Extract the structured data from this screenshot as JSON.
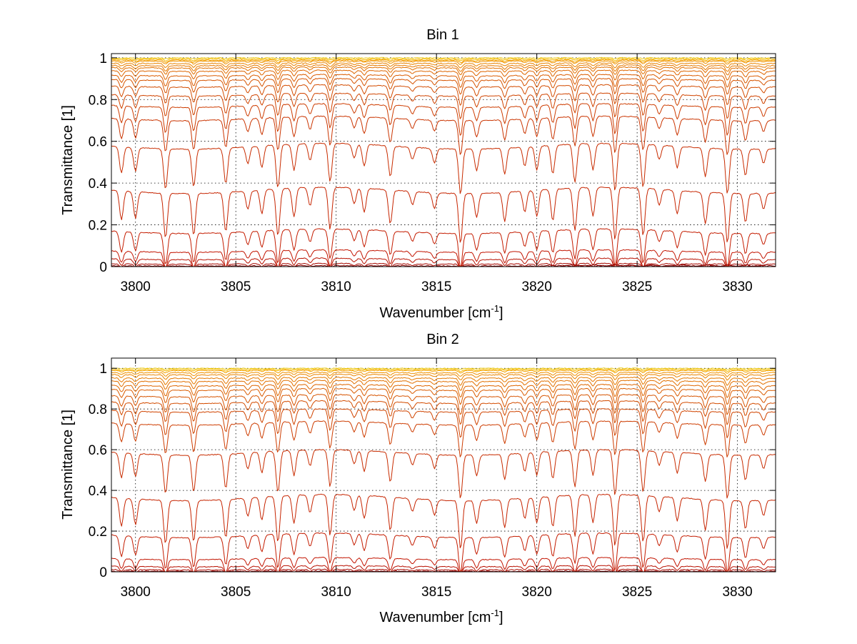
{
  "chart_data": [
    {
      "type": "line",
      "title": "Bin 1",
      "xlabel": "Wavenumber [cm",
      "xlabel_sup": "-1",
      "xlabel_end": "]",
      "ylabel": "Transmittance [1]",
      "xlim": [
        3798.8,
        3831.9
      ],
      "ylim": [
        0,
        1.02
      ],
      "xticks": [
        3800,
        3805,
        3810,
        3815,
        3820,
        3825,
        3830
      ],
      "yticks": [
        0,
        0.2,
        0.4,
        0.6,
        0.8,
        1
      ],
      "ytick_labels": [
        "0",
        "0.2",
        "0.4",
        "0.6",
        "0.8",
        "1"
      ],
      "grid": true,
      "lines": [
        {
          "x": [
            3820.6,
            3821.1,
            3821.8,
            3822.4,
            3822.9,
            3823.3,
            3823.9,
            3824.4,
            3824.6,
            3825.2,
            3825.7,
            3826.2,
            3827.3,
            3827.8,
            3828.5,
            3829.2,
            3829.5,
            3829.9,
            3830.5,
            3830.7,
            3831.5
          ],
          "y": [
            0.01,
            0.0,
            0.01,
            0.0,
            0.01,
            0.0,
            0.01,
            0.0,
            0.01,
            0.0,
            0.01,
            0.0,
            0.01,
            0.0,
            0.01,
            0.0,
            0.01,
            0.0,
            0.01,
            0.0,
            0.01
          ]
        }
      ],
      "series": [
        {
          "level": 1.0,
          "color": "#f0d020"
        },
        {
          "level": 0.995,
          "color": "#f5b800"
        },
        {
          "level": 0.99,
          "color": "#f3a200"
        },
        {
          "level": 0.985,
          "color": "#ef9200"
        },
        {
          "level": 0.975,
          "color": "#ea8500"
        },
        {
          "level": 0.965,
          "color": "#e67a00"
        },
        {
          "level": 0.955,
          "color": "#e27000"
        },
        {
          "level": 0.94,
          "color": "#de6600"
        },
        {
          "level": 0.92,
          "color": "#da5c00"
        },
        {
          "level": 0.9,
          "color": "#d65400"
        },
        {
          "level": 0.87,
          "color": "#d34c00"
        },
        {
          "level": 0.83,
          "color": "#d04400"
        },
        {
          "level": 0.78,
          "color": "#cd3c00"
        },
        {
          "level": 0.72,
          "color": "#ca3400"
        },
        {
          "level": 0.59,
          "color": "#c82c00"
        },
        {
          "level": 0.38,
          "color": "#c62400"
        },
        {
          "level": 0.18,
          "color": "#c41c00"
        },
        {
          "level": 0.08,
          "color": "#c21400"
        },
        {
          "level": 0.04,
          "color": "#b81000"
        },
        {
          "level": 0.015,
          "color": "#a80800"
        },
        {
          "level": 0.005,
          "color": "#8a0000"
        }
      ]
    },
    {
      "type": "line",
      "title": "Bin 2",
      "xlabel": "Wavenumber [cm",
      "xlabel_sup": "-1",
      "xlabel_end": "]",
      "ylabel": "Transmittance [1]",
      "xlim": [
        3798.8,
        3831.9
      ],
      "ylim": [
        0,
        1.05
      ],
      "xticks": [
        3800,
        3805,
        3810,
        3815,
        3820,
        3825,
        3830
      ],
      "yticks": [
        0,
        0.2,
        0.4,
        0.6,
        0.8,
        1
      ],
      "ytick_labels": [
        "0",
        "0.2",
        "0.4",
        "0.6",
        "0.8",
        "1"
      ],
      "grid": true,
      "series": [
        {
          "level": 1.0,
          "color": "#f0d020"
        },
        {
          "level": 0.995,
          "color": "#f5b800"
        },
        {
          "level": 0.99,
          "color": "#f3a200"
        },
        {
          "level": 0.98,
          "color": "#ef9200"
        },
        {
          "level": 0.97,
          "color": "#ea8500"
        },
        {
          "level": 0.955,
          "color": "#e67a00"
        },
        {
          "level": 0.94,
          "color": "#e27000"
        },
        {
          "level": 0.92,
          "color": "#de6600"
        },
        {
          "level": 0.9,
          "color": "#da5c00"
        },
        {
          "level": 0.87,
          "color": "#d65400"
        },
        {
          "level": 0.84,
          "color": "#d34c00"
        },
        {
          "level": 0.8,
          "color": "#d04400"
        },
        {
          "level": 0.74,
          "color": "#cd3c00"
        },
        {
          "level": 0.6,
          "color": "#c82c00"
        },
        {
          "level": 0.38,
          "color": "#c62400"
        },
        {
          "level": 0.19,
          "color": "#c41c00"
        },
        {
          "level": 0.07,
          "color": "#c21400"
        },
        {
          "level": 0.03,
          "color": "#b81000"
        },
        {
          "level": 0.012,
          "color": "#a80800"
        },
        {
          "level": 0.004,
          "color": "#8a0000"
        }
      ]
    }
  ],
  "absorption_lines": [
    [
      3799.3,
      0.55
    ],
    [
      3800.0,
      0.5
    ],
    [
      3801.5,
      0.85
    ],
    [
      3802.9,
      0.8
    ],
    [
      3804.5,
      0.75
    ],
    [
      3805.6,
      0.35
    ],
    [
      3806.3,
      0.45
    ],
    [
      3807.1,
      0.9
    ],
    [
      3807.9,
      0.55
    ],
    [
      3808.7,
      0.35
    ],
    [
      3809.7,
      0.8
    ],
    [
      3810.9,
      0.3
    ],
    [
      3811.4,
      0.45
    ],
    [
      3812.7,
      0.65
    ],
    [
      3813.8,
      0.25
    ],
    [
      3814.9,
      0.3
    ],
    [
      3816.2,
      0.95
    ],
    [
      3817.0,
      0.45
    ],
    [
      3818.4,
      0.55
    ],
    [
      3819.4,
      0.4
    ],
    [
      3820.0,
      0.5
    ],
    [
      3820.8,
      0.6
    ],
    [
      3821.9,
      0.8
    ],
    [
      3822.8,
      0.55
    ],
    [
      3823.9,
      1.0
    ],
    [
      3825.3,
      0.9
    ],
    [
      3826.1,
      0.3
    ],
    [
      3827.0,
      0.45
    ],
    [
      3828.4,
      0.6
    ],
    [
      3829.5,
      0.95
    ],
    [
      3830.4,
      0.55
    ],
    [
      3831.3,
      0.3
    ]
  ]
}
